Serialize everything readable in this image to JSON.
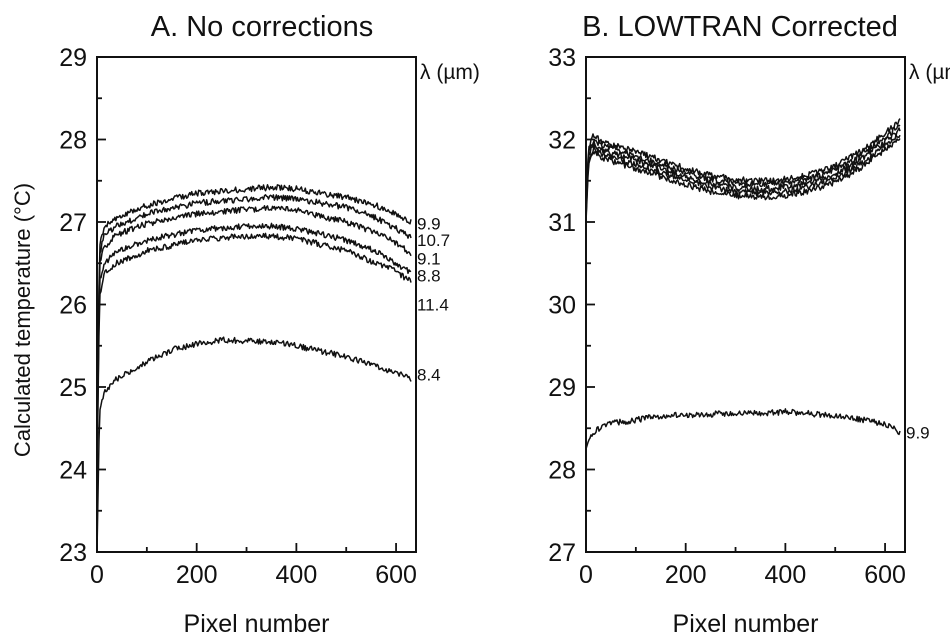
{
  "figure": {
    "ylabel": "Calculated temperature (°C)"
  },
  "chart_data": [
    {
      "type": "line",
      "title": "A.  No corrections",
      "xlabel": "Pixel number",
      "ylabel": "Calculated temperature (°C)",
      "xlim": [
        0,
        640
      ],
      "ylim": [
        23,
        29
      ],
      "xticks": [
        0,
        200,
        400,
        600
      ],
      "yticks": [
        23,
        24,
        25,
        26,
        27,
        28,
        29
      ],
      "legend_title": "λ (µm)",
      "series": [
        {
          "name": "9.9",
          "x": [
            0,
            5,
            15,
            40,
            100,
            200,
            300,
            350,
            400,
            500,
            560,
            600,
            630
          ],
          "y": [
            24.3,
            26.7,
            26.95,
            27.05,
            27.2,
            27.35,
            27.4,
            27.42,
            27.4,
            27.3,
            27.2,
            27.1,
            27.0
          ]
        },
        {
          "name": "10.7",
          "x": [
            0,
            5,
            15,
            40,
            100,
            200,
            300,
            350,
            400,
            500,
            560,
            600,
            630
          ],
          "y": [
            24.2,
            26.6,
            26.85,
            26.95,
            27.1,
            27.23,
            27.28,
            27.3,
            27.28,
            27.18,
            27.05,
            26.92,
            26.82
          ]
        },
        {
          "name": "9.1",
          "x": [
            0,
            5,
            15,
            40,
            100,
            200,
            300,
            350,
            400,
            500,
            560,
            600,
            630
          ],
          "y": [
            24.1,
            26.5,
            26.7,
            26.85,
            26.98,
            27.1,
            27.15,
            27.17,
            27.14,
            27.0,
            26.87,
            26.75,
            26.62
          ]
        },
        {
          "name": "8.8",
          "x": [
            0,
            5,
            15,
            40,
            100,
            200,
            300,
            350,
            400,
            500,
            560,
            600,
            630
          ],
          "y": [
            24.0,
            26.3,
            26.5,
            26.65,
            26.78,
            26.9,
            26.95,
            26.95,
            26.92,
            26.78,
            26.65,
            26.5,
            26.38
          ]
        },
        {
          "name": "11.4",
          "x": [
            0,
            5,
            15,
            40,
            100,
            200,
            300,
            350,
            400,
            500,
            560,
            600,
            630
          ],
          "y": [
            23.9,
            26.1,
            26.4,
            26.5,
            26.65,
            26.78,
            26.83,
            26.83,
            26.8,
            26.65,
            26.5,
            26.4,
            26.28
          ]
        },
        {
          "name": "8.4",
          "x": [
            0,
            5,
            15,
            40,
            100,
            150,
            200,
            250,
            300,
            350,
            400,
            500,
            560,
            600,
            630
          ],
          "y": [
            23.0,
            24.7,
            24.95,
            25.1,
            25.3,
            25.45,
            25.52,
            25.57,
            25.56,
            25.55,
            25.5,
            25.37,
            25.25,
            25.17,
            25.1
          ]
        }
      ],
      "labels": [
        {
          "text": "9.9",
          "x": 642,
          "y": 26.98
        },
        {
          "text": "10.7",
          "x": 642,
          "y": 26.78
        },
        {
          "text": "9.1",
          "x": 642,
          "y": 26.56
        },
        {
          "text": "8.8",
          "x": 642,
          "y": 26.35
        },
        {
          "text": "11.4",
          "x": 642,
          "y": 26.0
        },
        {
          "text": "8.4",
          "x": 642,
          "y": 25.15
        }
      ]
    },
    {
      "type": "line",
      "title": "B.  LOWTRAN Corrected",
      "xlabel": "Pixel number",
      "ylabel": "",
      "xlim": [
        0,
        640
      ],
      "ylim": [
        27,
        33
      ],
      "xticks": [
        0,
        200,
        400,
        600
      ],
      "yticks": [
        27,
        28,
        29,
        30,
        31,
        32,
        33
      ],
      "legend_title": "λ (µm)",
      "series": [
        {
          "name": "",
          "x": [
            0,
            5,
            15,
            30,
            60,
            100,
            150,
            200,
            250,
            300,
            350,
            400,
            450,
            500,
            550,
            600,
            630
          ],
          "y": [
            31.2,
            31.9,
            32.05,
            31.98,
            31.92,
            31.85,
            31.75,
            31.65,
            31.57,
            31.52,
            31.5,
            31.52,
            31.58,
            31.68,
            31.85,
            32.08,
            32.22
          ]
        },
        {
          "name": "",
          "x": [
            0,
            5,
            15,
            30,
            60,
            100,
            150,
            200,
            250,
            300,
            350,
            400,
            450,
            500,
            550,
            600,
            630
          ],
          "y": [
            31.15,
            31.85,
            32.0,
            31.93,
            31.87,
            31.8,
            31.7,
            31.6,
            31.52,
            31.47,
            31.45,
            31.47,
            31.53,
            31.63,
            31.8,
            32.03,
            32.17
          ]
        },
        {
          "name": "",
          "x": [
            0,
            5,
            15,
            30,
            60,
            100,
            150,
            200,
            250,
            300,
            350,
            400,
            450,
            500,
            550,
            600,
            630
          ],
          "y": [
            31.1,
            31.8,
            31.95,
            31.88,
            31.82,
            31.75,
            31.65,
            31.55,
            31.47,
            31.42,
            31.4,
            31.42,
            31.48,
            31.58,
            31.75,
            31.98,
            32.12
          ]
        },
        {
          "name": "",
          "x": [
            0,
            5,
            15,
            30,
            60,
            100,
            150,
            200,
            250,
            300,
            350,
            400,
            450,
            500,
            550,
            600,
            630
          ],
          "y": [
            31.05,
            31.75,
            31.9,
            31.83,
            31.77,
            31.7,
            31.6,
            31.5,
            31.42,
            31.37,
            31.35,
            31.37,
            31.43,
            31.53,
            31.7,
            31.93,
            32.07
          ]
        },
        {
          "name": "",
          "x": [
            0,
            5,
            15,
            30,
            60,
            100,
            150,
            200,
            250,
            300,
            350,
            400,
            450,
            500,
            550,
            600,
            630
          ],
          "y": [
            31.0,
            31.7,
            31.85,
            31.78,
            31.72,
            31.65,
            31.55,
            31.45,
            31.37,
            31.32,
            31.3,
            31.32,
            31.38,
            31.48,
            31.65,
            31.88,
            32.02
          ]
        },
        {
          "name": "9.9",
          "x": [
            0,
            5,
            15,
            40,
            100,
            150,
            200,
            300,
            350,
            400,
            500,
            560,
            600,
            630
          ],
          "y": [
            28.25,
            28.35,
            28.45,
            28.55,
            28.6,
            28.65,
            28.66,
            28.68,
            28.68,
            28.7,
            28.65,
            28.6,
            28.55,
            28.45
          ]
        }
      ],
      "labels": [
        {
          "text": "9.9",
          "x": 642,
          "y": 28.45
        }
      ]
    }
  ]
}
